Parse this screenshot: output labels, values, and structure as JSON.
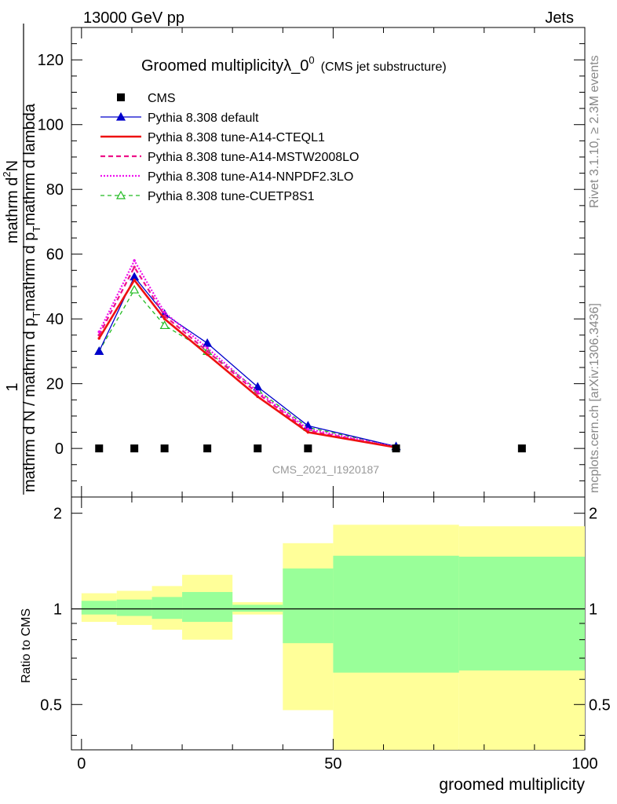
{
  "header": {
    "left": "13000 GeV pp",
    "right": "Jets"
  },
  "title": {
    "main": "Groomed multiplicityλ_0",
    "sup": "0",
    "sub": "(CMS jet substructure)"
  },
  "side_labels": {
    "rivet": "Rivet 3.1.10, ≥ 2.3M events",
    "mcplots": "mcplots.cern.ch [arXiv:1306.3436]"
  },
  "watermark": "CMS_2021_I1920187",
  "ylabel_top": {
    "numerator_1": "1",
    "numerator_main": "mathrm d",
    "numerator_sup": "2",
    "numerator_rest": "N",
    "denominator": "mathrm d N / mathrm d p",
    "denominator_sub": "T",
    "denominator_rest": "mathrm d p",
    "denominator_sub2": "T",
    "denominator_tail": "mathrm d lambda",
    "full": "1 / (mathrm d N / mathrm d p_T) mathrm d²N / (mathrm d p_T mathrm d lambda)"
  },
  "ratio_ylabel": "Ratio to CMS",
  "xlabel": "groomed multiplicity",
  "legend": [
    {
      "label": "CMS",
      "color": "#000000",
      "style": "data"
    },
    {
      "label": "Pythia 8.308 default",
      "color": "#0000cc",
      "style": "solid-tri"
    },
    {
      "label": "Pythia 8.308 tune-A14-CTEQL1",
      "color": "#ee1111",
      "style": "solid-thick"
    },
    {
      "label": "Pythia 8.308 tune-A14-MSTW2008LO",
      "color": "#ee1188",
      "style": "dashed"
    },
    {
      "label": "Pythia 8.308 tune-A14-NNPDF2.3LO",
      "color": "#ee11ee",
      "style": "dotted"
    },
    {
      "label": "Pythia 8.308 tune-CUETP8S1",
      "color": "#22bb22",
      "style": "dashed-opentri"
    }
  ],
  "chart_data": {
    "type": "line",
    "xlim": [
      -2,
      100
    ],
    "ylim_top": [
      -15,
      130
    ],
    "ylim_ratio": [
      0.36,
      2.25
    ],
    "x_ticks": [
      0,
      50,
      100
    ],
    "y_ticks_top": [
      0,
      20,
      40,
      60,
      80,
      100,
      120
    ],
    "y_ticks_ratio": [
      0.5,
      1,
      2
    ],
    "x_bin_edges": [
      0,
      7,
      14,
      20,
      30,
      40,
      50,
      75,
      100
    ],
    "x": [
      3.5,
      10.5,
      16.5,
      25,
      35,
      45,
      62.5,
      87.5
    ],
    "data": {
      "name": "CMS",
      "x": [
        3.5,
        10.5,
        16.5,
        25,
        35,
        45,
        62.5,
        87.5
      ],
      "y": [
        0,
        0,
        0,
        0,
        0,
        0,
        0,
        0
      ]
    },
    "series": [
      {
        "name": "Pythia 8.308 default",
        "x": [
          3.5,
          10.5,
          16.5,
          25,
          35,
          45,
          62.5
        ],
        "y": [
          30,
          53,
          41.5,
          32.5,
          19,
          7,
          0.6
        ]
      },
      {
        "name": "Pythia 8.308 tune-A14-CTEQL1",
        "x": [
          3.5,
          10.5,
          16.5,
          25,
          35,
          45,
          62.5
        ],
        "y": [
          34,
          52,
          40,
          29,
          16,
          5,
          0.3
        ]
      },
      {
        "name": "Pythia 8.308 tune-A14-MSTW2008LO",
        "x": [
          3.5,
          10.5,
          16.5,
          25,
          35,
          45,
          62.5
        ],
        "y": [
          35,
          56,
          41,
          30,
          17,
          5.5,
          0.3
        ]
      },
      {
        "name": "Pythia 8.308 tune-A14-NNPDF2.3LO",
        "x": [
          3.5,
          10.5,
          16.5,
          25,
          35,
          45,
          62.5
        ],
        "y": [
          36,
          58,
          42,
          31,
          17.5,
          6,
          0.4
        ]
      },
      {
        "name": "Pythia 8.308 tune-CUETP8S1",
        "x": [
          3.5,
          10.5,
          16.5,
          25,
          35,
          45,
          62.5
        ],
        "y": [
          30,
          49,
          38,
          30,
          18,
          6.5,
          0.6
        ]
      }
    ],
    "ratio_bands": {
      "inner": [
        {
          "lo": 0.96,
          "hi": 1.06
        },
        {
          "lo": 0.95,
          "hi": 1.07
        },
        {
          "lo": 0.93,
          "hi": 1.09
        },
        {
          "lo": 0.91,
          "hi": 1.13
        },
        {
          "lo": 0.98,
          "hi": 1.03
        },
        {
          "lo": 0.78,
          "hi": 1.34
        },
        {
          "lo": 0.63,
          "hi": 1.47
        },
        {
          "lo": 0.64,
          "hi": 1.46
        }
      ],
      "outer": [
        {
          "lo": 0.91,
          "hi": 1.12
        },
        {
          "lo": 0.89,
          "hi": 1.14
        },
        {
          "lo": 0.86,
          "hi": 1.18
        },
        {
          "lo": 0.8,
          "hi": 1.28
        },
        {
          "lo": 0.96,
          "hi": 1.05
        },
        {
          "lo": 0.48,
          "hi": 1.61
        },
        {
          "lo": 0.36,
          "hi": 1.84
        },
        {
          "lo": 0.36,
          "hi": 1.82
        }
      ]
    },
    "colors": {
      "inner_band": "#99ff99",
      "outer_band": "#ffff99"
    }
  }
}
